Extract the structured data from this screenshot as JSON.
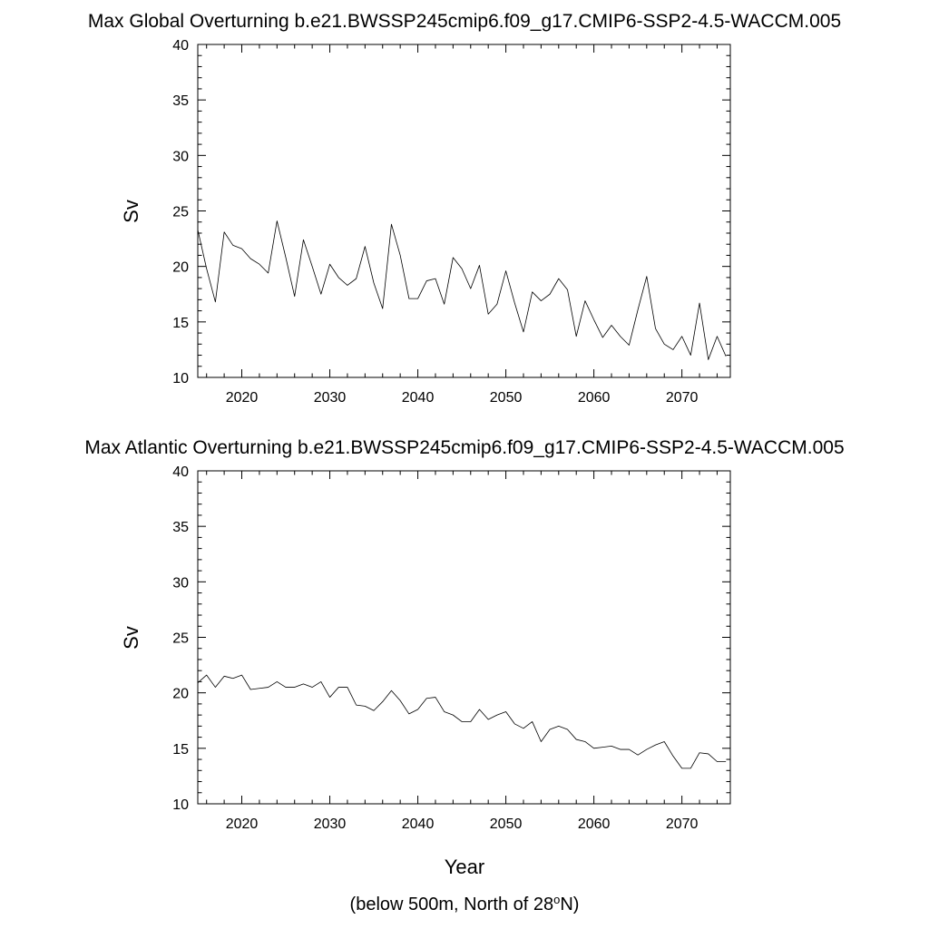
{
  "chart_data": [
    {
      "type": "line",
      "title": "Max Global Overturning b.e21.BWSSP245cmip6.f09_g17.CMIP6-SSP2-4.5-WACCM.005",
      "xlabel": "",
      "ylabel": "Sv",
      "xlim": [
        2015,
        2075.5
      ],
      "ylim": [
        10,
        40
      ],
      "xticks": [
        2020,
        2030,
        2040,
        2050,
        2060,
        2070
      ],
      "yticks": [
        10,
        15,
        20,
        25,
        30,
        35,
        40
      ],
      "grid": false,
      "series": [
        {
          "x": [
            2015,
            2016,
            2017,
            2018,
            2019,
            2020,
            2021,
            2022,
            2023,
            2024,
            2025,
            2026,
            2027,
            2028,
            2029,
            2030,
            2031,
            2032,
            2033,
            2034,
            2035,
            2036,
            2037,
            2038,
            2039,
            2040,
            2041,
            2042,
            2043,
            2044,
            2045,
            2046,
            2047,
            2048,
            2049,
            2050,
            2051,
            2052,
            2053,
            2054,
            2055,
            2056,
            2057,
            2058,
            2059,
            2060,
            2061,
            2062,
            2063,
            2064,
            2065,
            2066,
            2067,
            2068,
            2069,
            2070,
            2071,
            2072,
            2073,
            2074,
            2075
          ],
          "values": [
            23.3,
            19.8,
            16.8,
            23.1,
            21.9,
            21.6,
            20.7,
            20.2,
            19.4,
            24.1,
            20.8,
            17.3,
            22.4,
            20.0,
            17.5,
            20.2,
            19.0,
            18.3,
            18.9,
            21.8,
            18.5,
            16.2,
            23.8,
            21.0,
            17.1,
            17.1,
            18.7,
            18.9,
            16.6,
            20.8,
            19.8,
            18.0,
            20.1,
            15.7,
            16.6,
            19.6,
            16.7,
            14.1,
            17.7,
            16.9,
            17.5,
            18.9,
            17.9,
            13.7,
            16.9,
            15.2,
            13.6,
            14.7,
            13.7,
            12.9,
            16.1,
            19.1,
            14.4,
            13.0,
            12.5,
            13.7,
            12.0,
            16.7,
            11.6,
            13.7,
            11.9
          ]
        }
      ]
    },
    {
      "type": "line",
      "title": "Max Atlantic Overturning b.e21.BWSSP245cmip6.f09_g17.CMIP6-SSP2-4.5-WACCM.005",
      "xlabel": "Year",
      "ylabel": "Sv",
      "xlim": [
        2015,
        2075.5
      ],
      "ylim": [
        10,
        40
      ],
      "xticks": [
        2020,
        2030,
        2040,
        2050,
        2060,
        2070
      ],
      "yticks": [
        10,
        15,
        20,
        25,
        30,
        35,
        40
      ],
      "grid": false,
      "series": [
        {
          "x": [
            2015,
            2016,
            2017,
            2018,
            2019,
            2020,
            2021,
            2022,
            2023,
            2024,
            2025,
            2026,
            2027,
            2028,
            2029,
            2030,
            2031,
            2032,
            2033,
            2034,
            2035,
            2036,
            2037,
            2038,
            2039,
            2040,
            2041,
            2042,
            2043,
            2044,
            2045,
            2046,
            2047,
            2048,
            2049,
            2050,
            2051,
            2052,
            2053,
            2054,
            2055,
            2056,
            2057,
            2058,
            2059,
            2060,
            2061,
            2062,
            2063,
            2064,
            2065,
            2066,
            2067,
            2068,
            2069,
            2070,
            2071,
            2072,
            2073,
            2074,
            2075
          ],
          "values": [
            20.9,
            21.6,
            20.5,
            21.5,
            21.3,
            21.6,
            20.3,
            20.4,
            20.5,
            21.0,
            20.5,
            20.5,
            20.8,
            20.5,
            21.0,
            19.6,
            20.5,
            20.5,
            18.9,
            18.8,
            18.4,
            19.2,
            20.2,
            19.3,
            18.1,
            18.5,
            19.5,
            19.6,
            18.3,
            18.0,
            17.4,
            17.4,
            18.5,
            17.6,
            18.0,
            18.3,
            17.2,
            16.8,
            17.4,
            15.6,
            16.7,
            17.0,
            16.7,
            15.8,
            15.6,
            15.0,
            15.1,
            15.2,
            14.9,
            14.9,
            14.4,
            14.9,
            15.3,
            15.6,
            14.3,
            13.2,
            13.2,
            14.6,
            14.5,
            13.8,
            13.8
          ]
        }
      ]
    }
  ],
  "footnote": {
    "prefix": "(below 500m, North of 28",
    "superscript": "o",
    "suffix": "N)"
  }
}
